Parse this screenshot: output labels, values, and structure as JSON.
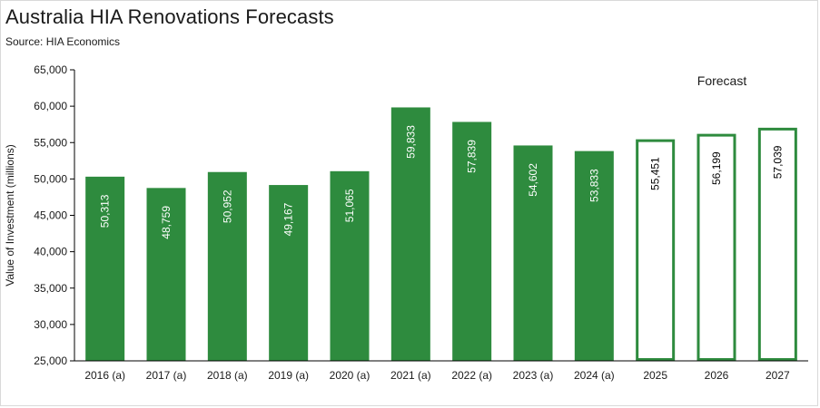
{
  "chart_data": {
    "type": "bar",
    "title": "Australia HIA Renovations Forecasts",
    "subtitle": "Source: HIA Economics",
    "ylabel": "Value of Investment (millions)",
    "xlabel": "",
    "ylim": [
      25000,
      65000
    ],
    "ytick_step": 5000,
    "annotation": "Forecast",
    "categories": [
      "2016 (a)",
      "2017 (a)",
      "2018 (a)",
      "2019 (a)",
      "2020 (a)",
      "2021 (a)",
      "2022 (a)",
      "2023 (a)",
      "2024 (a)",
      "2025",
      "2026",
      "2027"
    ],
    "values": [
      50313,
      48759,
      50952,
      49167,
      51065,
      59833,
      57839,
      54602,
      53833,
      55451,
      56199,
      57039
    ],
    "forecast": [
      false,
      false,
      false,
      false,
      false,
      false,
      false,
      false,
      false,
      true,
      true,
      true
    ],
    "colors": {
      "bar": "#2e8b3e",
      "axis": "#000000",
      "text": "#1a1a1a"
    }
  }
}
